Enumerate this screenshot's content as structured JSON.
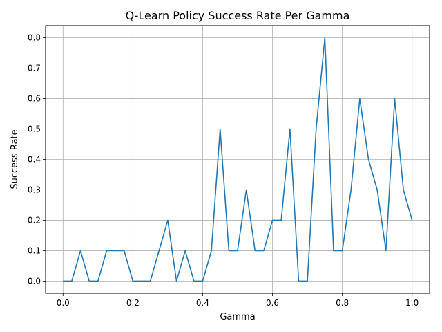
{
  "chart_data": {
    "type": "line",
    "title": "Q-Learn Policy Success Rate Per Gamma",
    "xlabel": "Gamma",
    "ylabel": "Success Rate",
    "xlim": [
      -0.05,
      1.05
    ],
    "ylim": [
      -0.04,
      0.84
    ],
    "grid": true,
    "xticks": [
      0.0,
      0.2,
      0.4,
      0.6,
      0.8,
      1.0
    ],
    "xtick_labels": [
      "0.0",
      "0.2",
      "0.4",
      "0.6",
      "0.8",
      "1.0"
    ],
    "yticks": [
      0.0,
      0.1,
      0.2,
      0.3,
      0.4,
      0.5,
      0.6,
      0.7,
      0.8
    ],
    "ytick_labels": [
      "0.0",
      "0.1",
      "0.2",
      "0.3",
      "0.4",
      "0.5",
      "0.6",
      "0.7",
      "0.8"
    ],
    "series": [
      {
        "name": "success_rate",
        "color": "#1f77b4",
        "x": [
          0.0,
          0.025,
          0.05,
          0.075,
          0.1,
          0.125,
          0.15,
          0.175,
          0.2,
          0.225,
          0.25,
          0.275,
          0.3,
          0.325,
          0.35,
          0.375,
          0.4,
          0.425,
          0.45,
          0.475,
          0.5,
          0.525,
          0.55,
          0.575,
          0.6,
          0.625,
          0.65,
          0.675,
          0.7,
          0.725,
          0.75,
          0.775,
          0.8,
          0.825,
          0.85,
          0.875,
          0.9,
          0.925,
          0.95,
          0.975,
          1.0
        ],
        "values": [
          0.0,
          0.0,
          0.1,
          0.0,
          0.0,
          0.1,
          0.1,
          0.1,
          0.0,
          0.0,
          0.0,
          0.1,
          0.2,
          0.0,
          0.1,
          0.0,
          0.0,
          0.1,
          0.5,
          0.1,
          0.1,
          0.3,
          0.1,
          0.1,
          0.2,
          0.2,
          0.5,
          0.0,
          0.0,
          0.5,
          0.8,
          0.1,
          0.1,
          0.3,
          0.6,
          0.4,
          0.3,
          0.1,
          0.6,
          0.3,
          0.2
        ]
      }
    ]
  }
}
